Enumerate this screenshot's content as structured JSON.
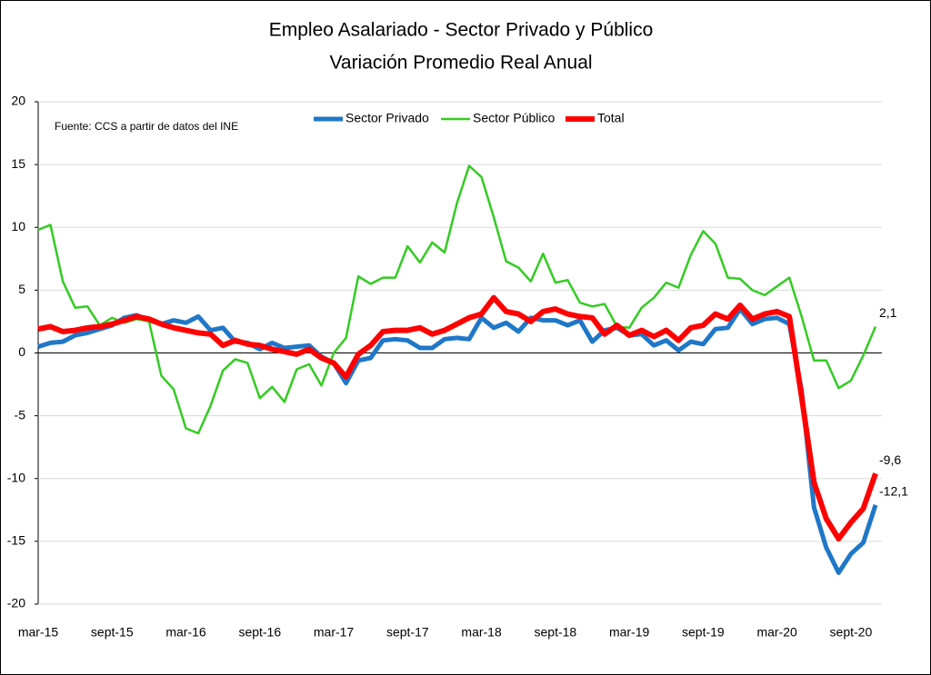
{
  "chart_data": {
    "type": "line",
    "title": "Empleo Asalariado - Sector Privado y Público",
    "subtitle": "Variación Promedio Real Anual",
    "annotation": "Fuente: CCS a partir de datos del INE",
    "categories": [
      "mar-15",
      null,
      null,
      null,
      null,
      null,
      "sept-15",
      null,
      null,
      null,
      null,
      null,
      "mar-16",
      null,
      null,
      null,
      null,
      null,
      "sept-16",
      null,
      null,
      null,
      null,
      null,
      "mar-17",
      null,
      null,
      null,
      null,
      null,
      "sept-17",
      null,
      null,
      null,
      null,
      null,
      "mar-18",
      null,
      null,
      null,
      null,
      null,
      "sept-18",
      null,
      null,
      null,
      null,
      null,
      "mar-19",
      null,
      null,
      null,
      null,
      null,
      "sept-19",
      null,
      null,
      null,
      null,
      null,
      "mar-20",
      null,
      null,
      null,
      null,
      null,
      "sept-20",
      null,
      null
    ],
    "series": [
      {
        "name": "Sector Privado",
        "color": "#1f77c8",
        "width": 5,
        "values": [
          0.5,
          0.8,
          0.9,
          1.4,
          1.6,
          1.9,
          2.2,
          2.8,
          3.0,
          2.6,
          2.3,
          2.6,
          2.4,
          2.9,
          1.8,
          2.0,
          0.9,
          0.8,
          0.3,
          0.8,
          0.4,
          0.5,
          0.6,
          -0.3,
          -0.8,
          -2.4,
          -0.6,
          -0.4,
          1.0,
          1.1,
          1.0,
          0.4,
          0.4,
          1.1,
          1.2,
          1.1,
          2.8,
          2.0,
          2.4,
          1.7,
          2.8,
          2.6,
          2.6,
          2.2,
          2.6,
          0.9,
          1.8,
          2.0,
          1.4,
          1.5,
          0.6,
          1.0,
          0.2,
          0.9,
          0.7,
          1.9,
          2.0,
          3.5,
          2.3,
          2.7,
          2.8,
          2.3,
          -3.0,
          -12.3,
          -15.5,
          -17.5,
          -16.0,
          -15.1,
          -12.1
        ],
        "value_labels": [
          null,
          null,
          null,
          null,
          null,
          null,
          null,
          null,
          null,
          null,
          null,
          null,
          null,
          null,
          null,
          null,
          null,
          null,
          null,
          null,
          null,
          null,
          null,
          null,
          null,
          null,
          null,
          null,
          null,
          null,
          null,
          null,
          null,
          null,
          null,
          null,
          null,
          null,
          null,
          null,
          null,
          null,
          null,
          null,
          null,
          null,
          null,
          null,
          null,
          null,
          null,
          null,
          null,
          null,
          null,
          null,
          null,
          null,
          null,
          null,
          null,
          null,
          null,
          null,
          null,
          null,
          null,
          null,
          "-12,1"
        ]
      },
      {
        "name": "Sector Público",
        "color": "#33cc22",
        "width": 2.5,
        "values": [
          9.8,
          10.2,
          5.7,
          3.6,
          3.7,
          2.2,
          2.8,
          2.4,
          2.7,
          2.5,
          -1.8,
          -2.9,
          -6.0,
          -6.4,
          -4.2,
          -1.4,
          -0.5,
          -0.8,
          -3.6,
          -2.7,
          -3.9,
          -1.3,
          -0.9,
          -2.6,
          0.0,
          1.2,
          6.1,
          5.5,
          6.0,
          6.0,
          8.5,
          7.2,
          8.8,
          8.0,
          11.9,
          14.9,
          14.0,
          10.8,
          7.3,
          6.8,
          5.7,
          7.9,
          5.6,
          5.8,
          4.0,
          3.7,
          3.9,
          2.1,
          2.0,
          3.6,
          4.4,
          5.6,
          5.2,
          7.8,
          9.7,
          8.7,
          6.0,
          5.9,
          5.0,
          4.6,
          5.3,
          6.0,
          2.9,
          -0.6,
          -0.6,
          -2.8,
          -2.2,
          -0.2,
          2.1
        ],
        "value_labels": [
          null,
          null,
          null,
          null,
          null,
          null,
          null,
          null,
          null,
          null,
          null,
          null,
          null,
          null,
          null,
          null,
          null,
          null,
          null,
          null,
          null,
          null,
          null,
          null,
          null,
          null,
          null,
          null,
          null,
          null,
          null,
          null,
          null,
          null,
          null,
          null,
          null,
          null,
          null,
          null,
          null,
          null,
          null,
          null,
          null,
          null,
          null,
          null,
          null,
          null,
          null,
          null,
          null,
          null,
          null,
          null,
          null,
          null,
          null,
          null,
          null,
          null,
          null,
          null,
          null,
          null,
          null,
          null,
          "2,1"
        ]
      },
      {
        "name": "Total",
        "color": "#ff0000",
        "width": 6,
        "values": [
          1.9,
          2.1,
          1.7,
          1.8,
          2.0,
          2.1,
          2.3,
          2.6,
          2.9,
          2.7,
          2.3,
          2.0,
          1.8,
          1.6,
          1.5,
          0.6,
          1.0,
          0.7,
          0.6,
          0.3,
          0.1,
          -0.1,
          0.3,
          -0.4,
          -0.8,
          -1.9,
          -0.1,
          0.6,
          1.7,
          1.8,
          1.8,
          2.0,
          1.5,
          1.8,
          2.3,
          2.8,
          3.1,
          4.4,
          3.3,
          3.1,
          2.5,
          3.3,
          3.5,
          3.1,
          2.9,
          2.8,
          1.5,
          2.2,
          1.4,
          1.8,
          1.3,
          1.8,
          1.0,
          2.0,
          2.2,
          3.1,
          2.7,
          3.8,
          2.7,
          3.1,
          3.3,
          2.9,
          -3.5,
          -10.3,
          -13.2,
          -14.8,
          -13.5,
          -12.4,
          -9.6
        ],
        "value_labels": [
          null,
          null,
          null,
          null,
          null,
          null,
          null,
          null,
          null,
          null,
          null,
          null,
          null,
          null,
          null,
          null,
          null,
          null,
          null,
          null,
          null,
          null,
          null,
          null,
          null,
          null,
          null,
          null,
          null,
          null,
          null,
          null,
          null,
          null,
          null,
          null,
          null,
          null,
          null,
          null,
          null,
          null,
          null,
          null,
          null,
          null,
          null,
          null,
          null,
          null,
          null,
          null,
          null,
          null,
          null,
          null,
          null,
          null,
          null,
          null,
          null,
          null,
          null,
          null,
          null,
          null,
          null,
          null,
          "-9,6"
        ]
      }
    ],
    "ylim": [
      -20,
      20
    ],
    "yticks": [
      -20,
      -15,
      -10,
      -5,
      0,
      5,
      10,
      15,
      20
    ],
    "grid": true,
    "legend": "top"
  }
}
